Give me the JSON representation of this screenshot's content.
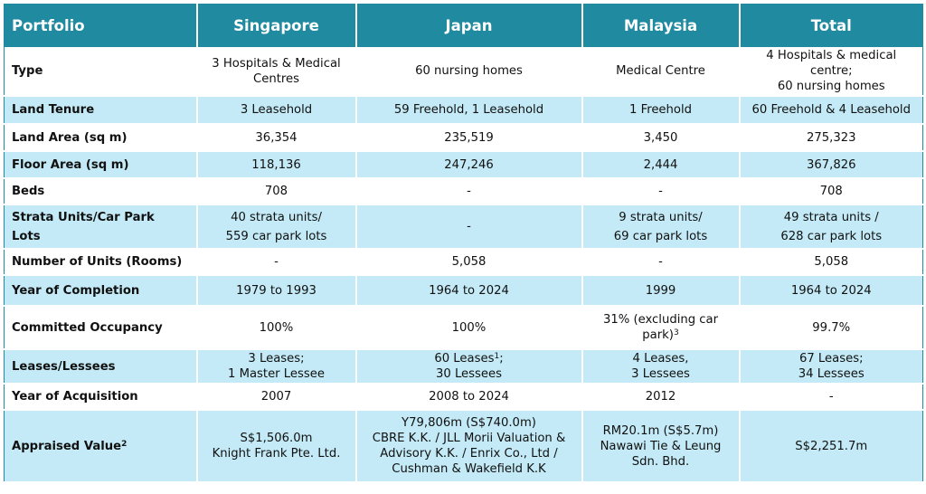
{
  "header": {
    "portfolio": "Portfolio",
    "singapore": "Singapore",
    "japan": "Japan",
    "malaysia": "Malaysia",
    "total": "Total"
  },
  "rows": [
    {
      "label": "Type",
      "sg": "3 Hospitals & Medical\nCentres",
      "jp": "60 nursing homes",
      "my": "Medical Centre",
      "total": "4 Hospitals & medical centre;\n60 nursing homes"
    },
    {
      "label": "Land Tenure",
      "sg": "3 Leasehold",
      "jp": "59 Freehold, 1 Leasehold",
      "my": "1 Freehold",
      "total": "60 Freehold & 4 Leasehold"
    },
    {
      "label": "Land Area (sq m)",
      "sg": "36,354",
      "jp": "235,519",
      "my": "3,450",
      "total": "275,323"
    },
    {
      "label": "Floor Area (sq m)",
      "sg": "118,136",
      "jp": "247,246",
      "my": "2,444",
      "total": "367,826"
    },
    {
      "label": "Beds",
      "sg": "708",
      "jp": "-",
      "my": "-",
      "total": "708"
    },
    {
      "label": "Strata Units/Car Park\nLots",
      "sg": "40 strata units/\n559 car park lots",
      "jp": "-",
      "my": "9 strata units/\n69 car park lots",
      "total": "49 strata units /\n628 car park lots"
    },
    {
      "label": "Number of Units (Rooms)",
      "sg": "-",
      "jp": "5,058",
      "my": "-",
      "total": "5,058"
    },
    {
      "label": "Year of Completion",
      "sg": "1979 to 1993",
      "jp": "1964 to 2024",
      "my": "1999",
      "total": "1964 to 2024"
    },
    {
      "label": "Committed Occupancy",
      "sg": "100%",
      "jp": "100%",
      "my": "31% (excluding car\npark)",
      "my_sup": "3",
      "total": "99.7%"
    },
    {
      "label": "Leases/Lessees",
      "sg": "3 Leases;\n1 Master Lessee",
      "jp_a": "60 Leases",
      "jp_sup": "1",
      "jp_b": ";\n30 Lessees",
      "my": "4 Leases,\n3 Lessees",
      "total": "67 Leases;\n34 Lessees"
    },
    {
      "label": "Year of Acquisition",
      "sg": "2007",
      "jp": "2008 to 2024",
      "my": "2012",
      "total": "-"
    },
    {
      "label": "Appraised Value",
      "label_sup": "2",
      "sg": "S$1,506.0m\nKnight Frank Pte. Ltd.",
      "jp": "Y79,806m (S$740.0m)\nCBRE K.K. / JLL Morii Valuation &\nAdvisory K.K. / Enrix Co., Ltd /\nCushman & Wakefield K.K",
      "my": "RM20.1m (S$5.7m)\nNawawi Tie & Leung\nSdn. Bhd.",
      "total": "S$2,251.7m"
    }
  ],
  "colors": {
    "header_bg": "#1f8aa0",
    "band_bg": "#c3eaf6",
    "white_bg": "#ffffff"
  }
}
